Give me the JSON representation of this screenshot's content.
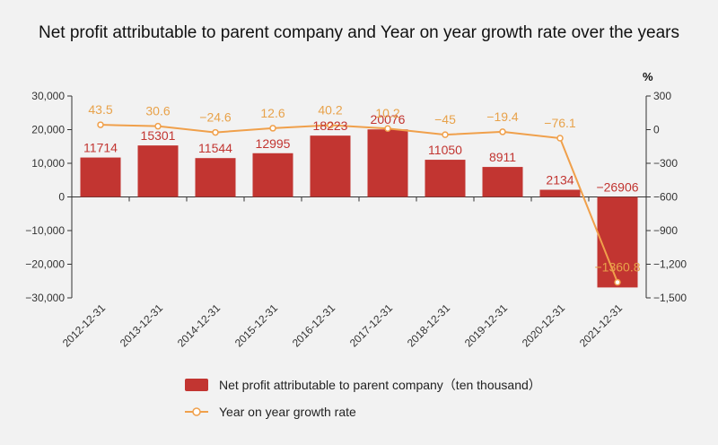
{
  "chart_data": {
    "type": "bar",
    "title": "Net profit attributable to parent company and Year on year growth rate over the years",
    "categories": [
      "2012-12-31",
      "2013-12-31",
      "2014-12-31",
      "2015-12-31",
      "2016-12-31",
      "2017-12-31",
      "2018-12-31",
      "2019-12-31",
      "2020-12-31",
      "2021-12-31"
    ],
    "series": [
      {
        "name": "Net profit attributable to parent company（ten thousand）",
        "type": "bar",
        "axis": "left",
        "values": [
          11714,
          15301,
          11544,
          12995,
          18223,
          20076,
          11050,
          8911,
          2134,
          -26906
        ],
        "labels": [
          "11714",
          "15301",
          "11544",
          "12995",
          "18223",
          "20076",
          "11050",
          "8911",
          "2134",
          "−26906"
        ]
      },
      {
        "name": "Year on year growth rate",
        "type": "line",
        "axis": "right",
        "values": [
          43.5,
          30.6,
          -24.6,
          12.6,
          40.2,
          10.2,
          -45,
          -19.4,
          -76.1,
          -1360.8
        ],
        "labels": [
          "43.5",
          "30.6",
          "−24.6",
          "12.6",
          "40.2",
          "10.2",
          "−45",
          "−19.4",
          "−76.1",
          "−1360.8"
        ]
      }
    ],
    "y_left": {
      "ylim": [
        -30000,
        30000
      ],
      "ticks": [
        30000,
        20000,
        10000,
        0,
        -10000,
        -20000,
        -30000
      ],
      "tick_labels": [
        "30,000",
        "20,000",
        "10,000",
        "0",
        "−10,000",
        "−20,000",
        "−30,000"
      ]
    },
    "y_right": {
      "ylim": [
        -1500,
        300
      ],
      "unit": "%",
      "ticks": [
        300,
        0,
        -300,
        -600,
        -900,
        -1200,
        -1500
      ],
      "tick_labels": [
        "300",
        "0",
        "−300",
        "−600",
        "−900",
        "−1,200",
        "−1,500"
      ]
    },
    "grid": false,
    "legend_position": "bottom",
    "colors": {
      "bar": "#c23531",
      "line": "#f0a04b",
      "axis": "#333333",
      "background": "#f2f2f2"
    }
  }
}
